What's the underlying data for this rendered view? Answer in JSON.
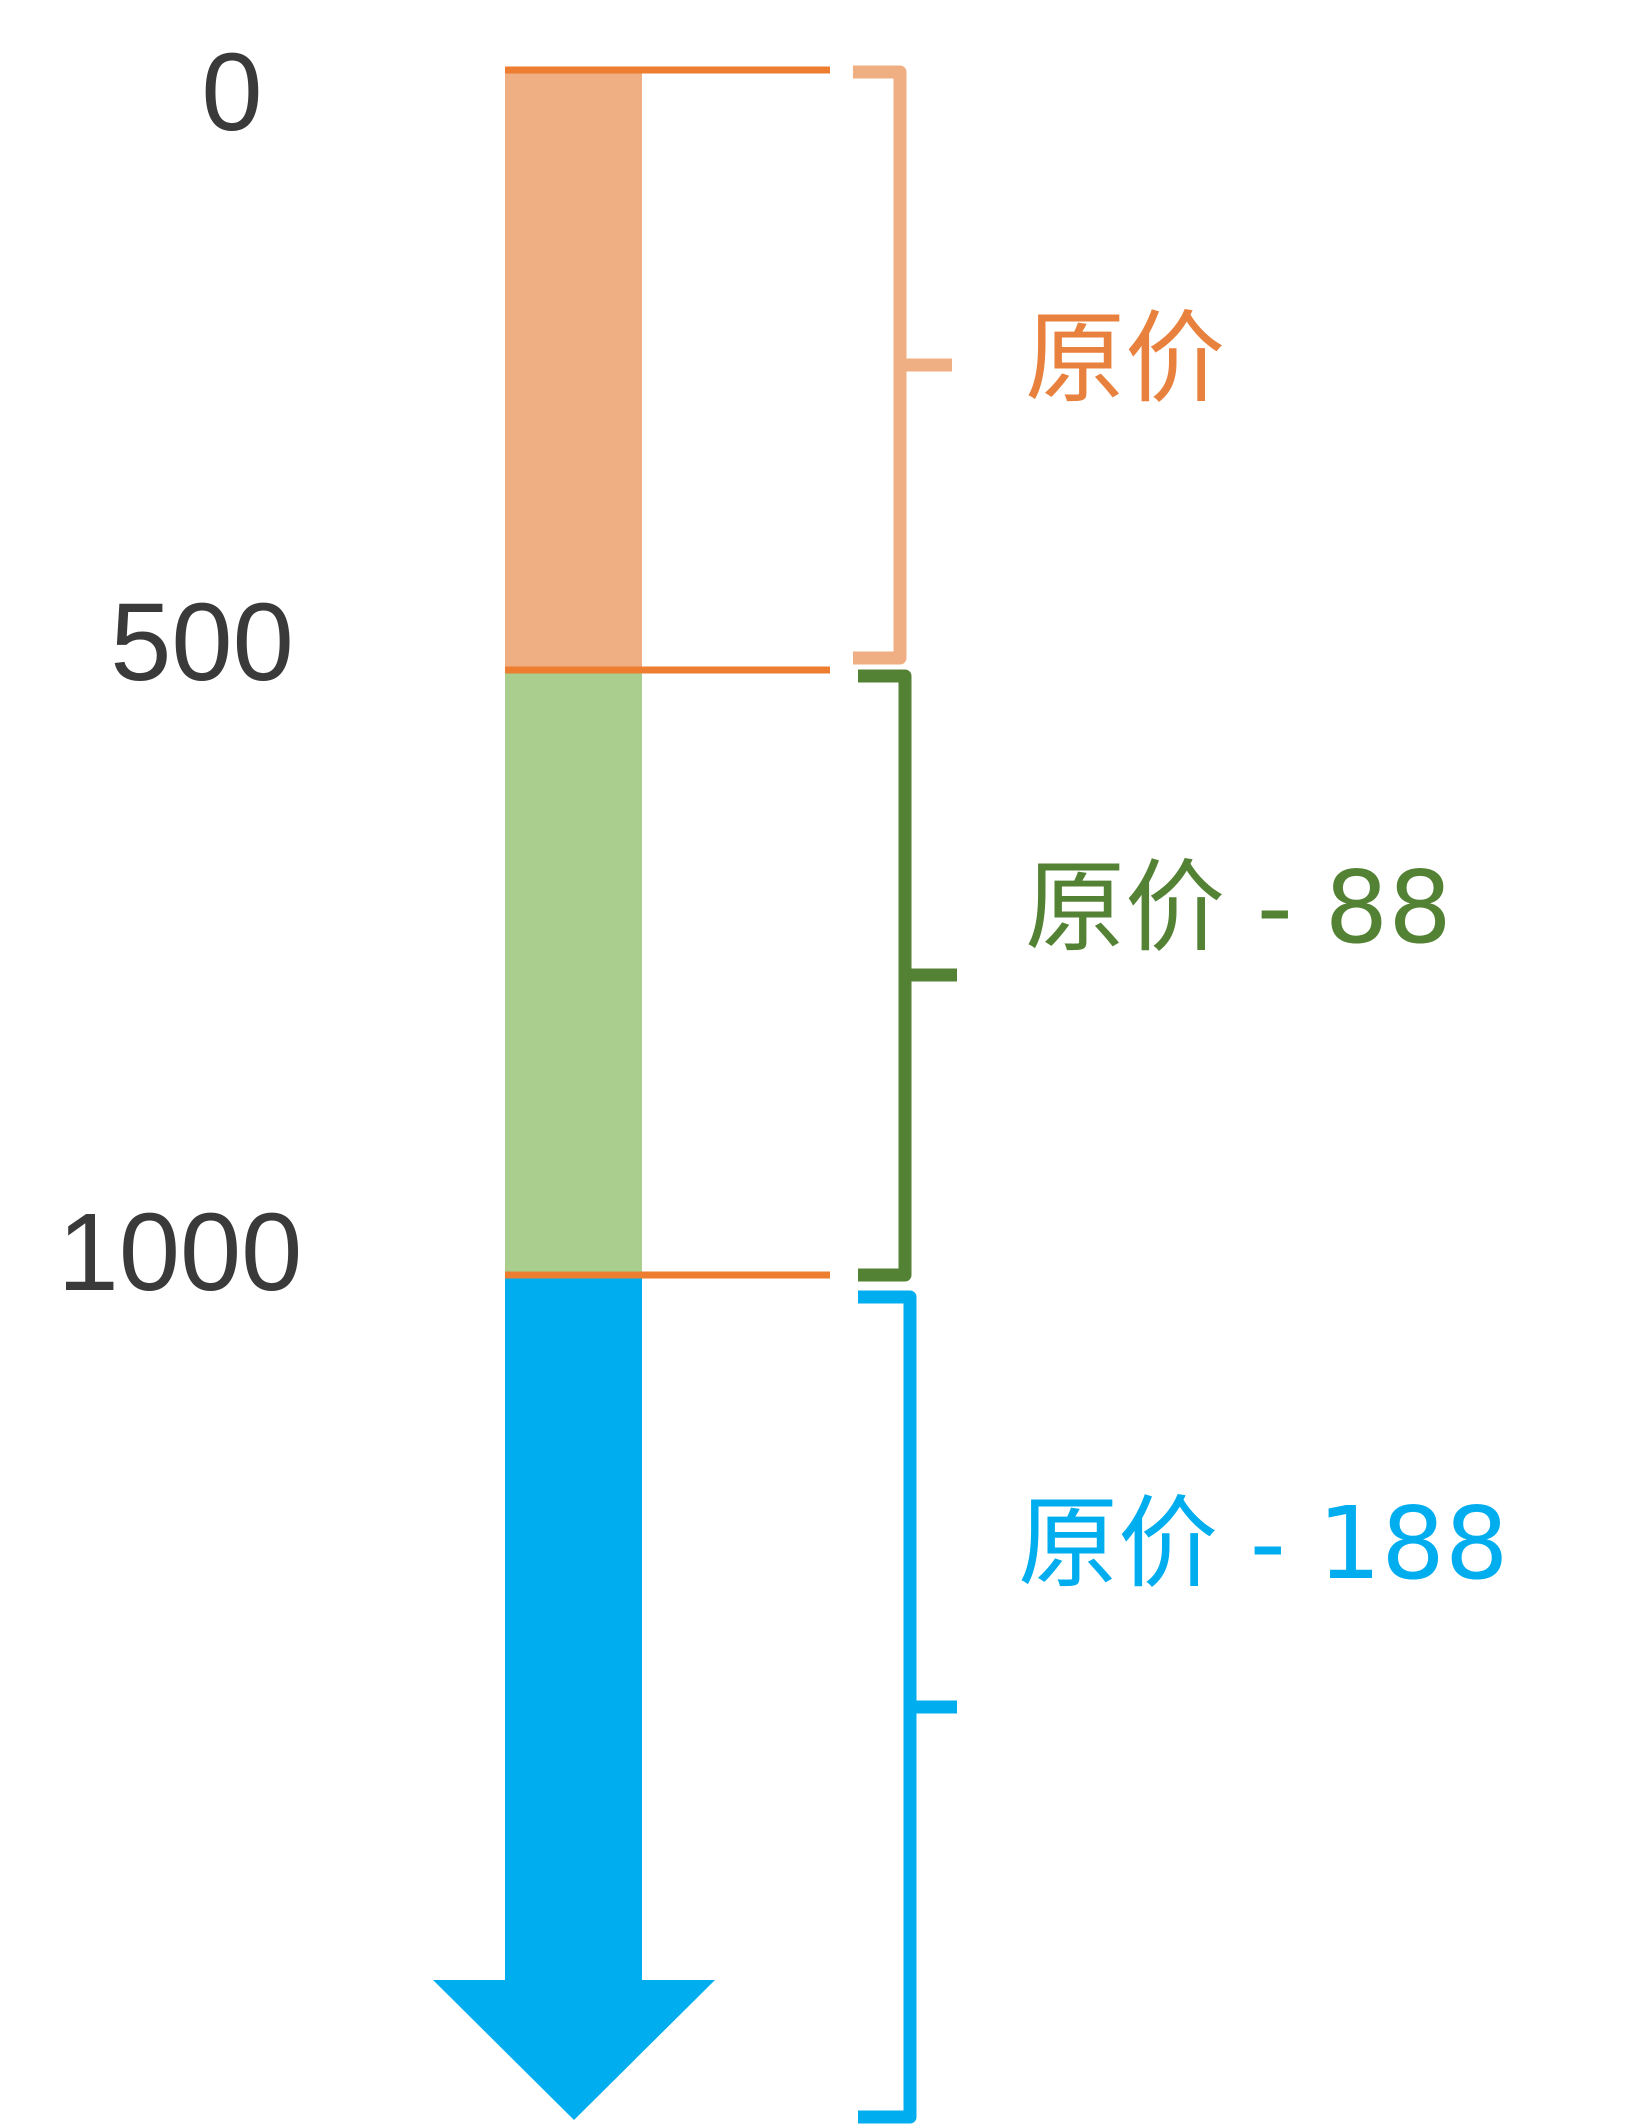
{
  "ticks": [
    {
      "label": "0",
      "value": 0
    },
    {
      "label": "500",
      "value": 500
    },
    {
      "label": "1000",
      "value": 1000
    }
  ],
  "segments": [
    {
      "label": "原价",
      "from": 0,
      "to": 500,
      "fill_color": "#F0AF82",
      "text_color": "#E8803E",
      "brace_color": "#F0AF82"
    },
    {
      "label": "原价 - 88",
      "from": 500,
      "to": 1000,
      "fill_color": "#A9CE8D",
      "text_color": "#548235",
      "brace_color": "#548235"
    },
    {
      "label": "原价 - 188",
      "from": 1000,
      "to": null,
      "fill_color": "#00AEEF",
      "text_color": "#00AEEF",
      "brace_color": "#00AEEF"
    }
  ],
  "separator_color": "#ED7D31"
}
